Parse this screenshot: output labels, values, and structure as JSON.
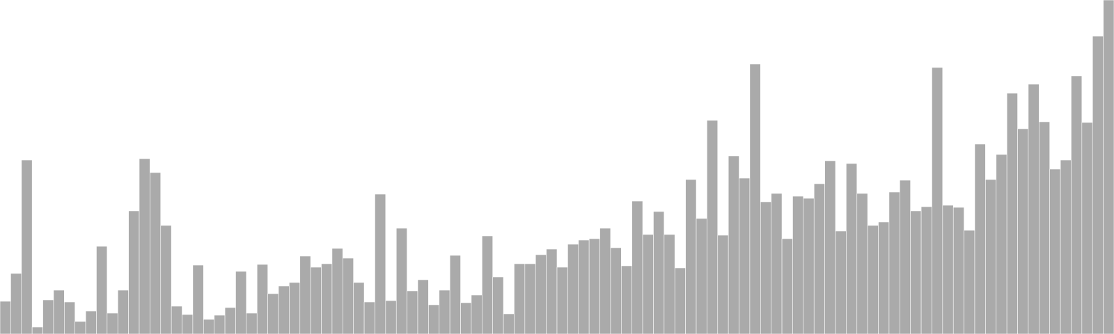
{
  "chart_data": {
    "type": "bar",
    "title": "",
    "xlabel": "",
    "ylabel": "",
    "grid": false,
    "legend": "none",
    "ylim": [
      0,
      480
    ],
    "colors": {
      "bar_fill": "#aaaaaa",
      "bar_stroke": "#ffffff",
      "background": "#ffffff"
    },
    "values": [
      47,
      87,
      250,
      10,
      49,
      63,
      46,
      18,
      33,
      126,
      30,
      63,
      177,
      252,
      232,
      156,
      40,
      28,
      99,
      21,
      27,
      38,
      90,
      30,
      100,
      58,
      69,
      74,
      112,
      96,
      101,
      123,
      109,
      74,
      46,
      201,
      48,
      152,
      62,
      78,
      42,
      63,
      113,
      45,
      56,
      141,
      82,
      29,
      101,
      101,
      114,
      122,
      96,
      129,
      135,
      137,
      152,
      124,
      98,
      191,
      143,
      176,
      143,
      95,
      222,
      166,
      307,
      142,
      256,
      224,
      388,
      190,
      202,
      137,
      198,
      195,
      216,
      249,
      148,
      245,
      202,
      156,
      161,
      204,
      221,
      177,
      183,
      383,
      185,
      182,
      149,
      273,
      222,
      258,
      346,
      295,
      359,
      305,
      237,
      250,
      371,
      304,
      428,
      480
    ]
  }
}
